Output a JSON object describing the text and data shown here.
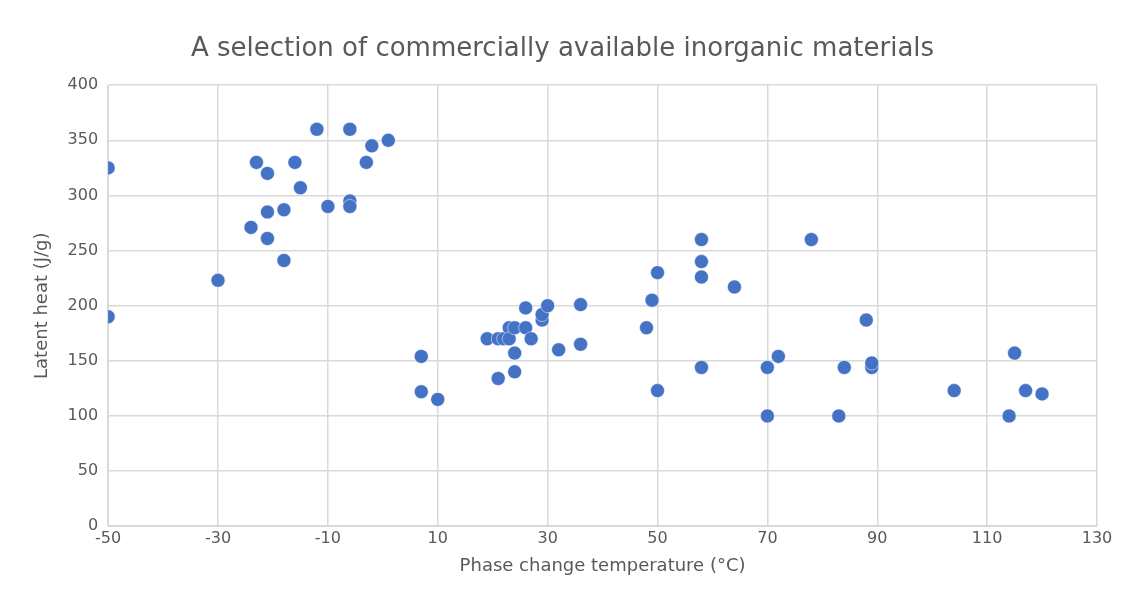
{
  "chart_data": {
    "type": "scatter",
    "title": "A selection of commercially available inorganic materials",
    "xlabel": "Phase change temperature (°C)",
    "ylabel": "Latent heat (J/g)",
    "series": [
      {
        "color": "#4472c4",
        "x": [
          -50,
          -50,
          -30,
          -24,
          -23,
          -21,
          -21,
          -21,
          -18,
          -18,
          -16,
          -15,
          -12,
          -10,
          -6,
          -6,
          -6,
          -3,
          -2,
          1,
          7,
          7,
          10,
          19,
          21,
          21,
          22,
          23,
          23,
          24,
          24,
          24,
          26,
          26,
          27,
          29,
          29,
          30,
          32,
          36,
          36,
          48,
          49,
          50,
          50,
          58,
          58,
          58,
          58,
          64,
          70,
          70,
          72,
          78,
          83,
          84,
          88,
          89,
          89,
          104,
          114,
          115,
          117,
          120
        ],
        "values": [
          325,
          190,
          223,
          271,
          330,
          320,
          285,
          261,
          287,
          241,
          330,
          307,
          360,
          290,
          360,
          295,
          290,
          330,
          345,
          350,
          154,
          122,
          115,
          170,
          170,
          134,
          170,
          180,
          170,
          180,
          157,
          140,
          180,
          198,
          170,
          187,
          192,
          200,
          160,
          201,
          165,
          180,
          205,
          230,
          123,
          260,
          240,
          226,
          144,
          217,
          144,
          100,
          154,
          260,
          100,
          144,
          187,
          144,
          148,
          123,
          100,
          157,
          123,
          120
        ]
      }
    ],
    "xlim": [
      -50,
      130
    ],
    "xticks": [
      -50,
      -30,
      -10,
      10,
      30,
      50,
      70,
      90,
      110,
      130
    ],
    "ylim": [
      0,
      400
    ],
    "yticks": [
      0,
      50,
      100,
      150,
      200,
      250,
      300,
      350,
      400
    ],
    "grid": true,
    "legend": false,
    "marker": "circle"
  }
}
